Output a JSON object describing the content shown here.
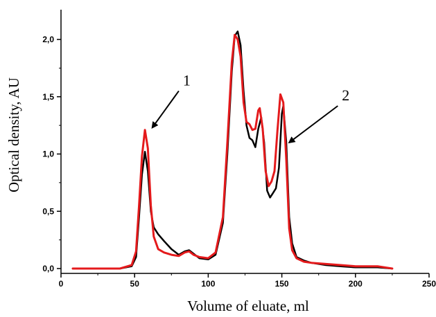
{
  "chart_data": {
    "type": "line",
    "title": "",
    "xlabel": "Volume of eluate, ml",
    "ylabel": "Optical density, AU",
    "xlim": [
      0,
      250
    ],
    "ylim": [
      0,
      2.2
    ],
    "x_ticks": [
      0,
      50,
      100,
      150,
      200,
      250
    ],
    "x_tick_labels": [
      "0",
      "50",
      "100",
      "150",
      "200",
      "250"
    ],
    "y_ticks": [
      0,
      0.5,
      1.0,
      1.5,
      2.0
    ],
    "y_tick_labels": [
      "0,0",
      "0,5",
      "1,0",
      "1,5",
      "2,0"
    ],
    "grid": false,
    "legend": "none",
    "series": [
      {
        "color": "#000000",
        "points": [
          [
            8,
            0.0
          ],
          [
            40,
            0.0
          ],
          [
            48,
            0.02
          ],
          [
            51,
            0.1
          ],
          [
            53,
            0.45
          ],
          [
            55,
            0.82
          ],
          [
            57,
            1.02
          ],
          [
            59,
            0.85
          ],
          [
            61,
            0.5
          ],
          [
            63,
            0.36
          ],
          [
            66,
            0.3
          ],
          [
            70,
            0.24
          ],
          [
            75,
            0.17
          ],
          [
            80,
            0.12
          ],
          [
            84,
            0.15
          ],
          [
            87,
            0.16
          ],
          [
            90,
            0.13
          ],
          [
            94,
            0.09
          ],
          [
            100,
            0.08
          ],
          [
            105,
            0.12
          ],
          [
            110,
            0.4
          ],
          [
            113,
            1.0
          ],
          [
            116,
            1.72
          ],
          [
            118,
            2.03
          ],
          [
            120,
            2.07
          ],
          [
            122,
            1.95
          ],
          [
            124,
            1.55
          ],
          [
            126,
            1.25
          ],
          [
            128,
            1.14
          ],
          [
            130,
            1.12
          ],
          [
            132,
            1.06
          ],
          [
            134,
            1.22
          ],
          [
            136,
            1.32
          ],
          [
            138,
            1.1
          ],
          [
            140,
            0.68
          ],
          [
            142,
            0.62
          ],
          [
            144,
            0.66
          ],
          [
            146,
            0.7
          ],
          [
            148,
            0.88
          ],
          [
            150,
            1.35
          ],
          [
            151,
            1.42
          ],
          [
            153,
            1.1
          ],
          [
            155,
            0.45
          ],
          [
            157,
            0.22
          ],
          [
            160,
            0.1
          ],
          [
            165,
            0.07
          ],
          [
            170,
            0.05
          ],
          [
            180,
            0.03
          ],
          [
            190,
            0.02
          ],
          [
            200,
            0.01
          ],
          [
            215,
            0.01
          ],
          [
            225,
            0.0
          ]
        ]
      },
      {
        "color": "#e41a1c",
        "points": [
          [
            8,
            0.0
          ],
          [
            40,
            0.0
          ],
          [
            48,
            0.03
          ],
          [
            51,
            0.15
          ],
          [
            53,
            0.55
          ],
          [
            55,
            0.98
          ],
          [
            57,
            1.21
          ],
          [
            59,
            1.05
          ],
          [
            61,
            0.55
          ],
          [
            63,
            0.28
          ],
          [
            66,
            0.17
          ],
          [
            70,
            0.14
          ],
          [
            75,
            0.12
          ],
          [
            80,
            0.11
          ],
          [
            84,
            0.14
          ],
          [
            87,
            0.15
          ],
          [
            90,
            0.12
          ],
          [
            94,
            0.1
          ],
          [
            100,
            0.09
          ],
          [
            105,
            0.14
          ],
          [
            110,
            0.45
          ],
          [
            113,
            1.1
          ],
          [
            116,
            1.8
          ],
          [
            118,
            2.04
          ],
          [
            120,
            2.0
          ],
          [
            122,
            1.85
          ],
          [
            124,
            1.45
          ],
          [
            126,
            1.28
          ],
          [
            128,
            1.26
          ],
          [
            130,
            1.21
          ],
          [
            132,
            1.22
          ],
          [
            134,
            1.38
          ],
          [
            135,
            1.4
          ],
          [
            137,
            1.22
          ],
          [
            139,
            0.85
          ],
          [
            141,
            0.72
          ],
          [
            143,
            0.76
          ],
          [
            145,
            0.85
          ],
          [
            147,
            1.2
          ],
          [
            149,
            1.52
          ],
          [
            151,
            1.45
          ],
          [
            153,
            0.95
          ],
          [
            155,
            0.35
          ],
          [
            157,
            0.16
          ],
          [
            160,
            0.09
          ],
          [
            165,
            0.06
          ],
          [
            170,
            0.05
          ],
          [
            180,
            0.04
          ],
          [
            190,
            0.03
          ],
          [
            200,
            0.02
          ],
          [
            210,
            0.02
          ],
          [
            215,
            0.02
          ],
          [
            225,
            0.0
          ]
        ]
      }
    ],
    "annotations": [
      {
        "text": "1",
        "arrow_from": [
          80,
          1.55
        ],
        "arrow_to": [
          62,
          1.23
        ]
      },
      {
        "text": "2",
        "arrow_from": [
          188,
          1.42
        ],
        "arrow_to": [
          155,
          1.1
        ]
      }
    ]
  }
}
